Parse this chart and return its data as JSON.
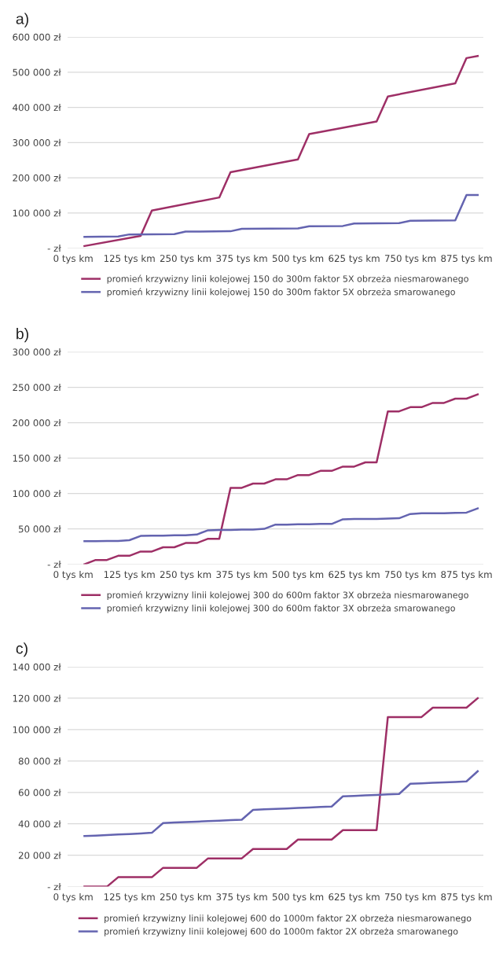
{
  "chart_data": [
    {
      "type": "line",
      "title": "a)",
      "grid": "y",
      "legend": "bottom",
      "xlim": [
        -12.5,
        912.5
      ],
      "ylim": [
        0,
        600000
      ],
      "xticks": [
        {
          "value": 0,
          "label": "0 tys km"
        },
        {
          "value": 125,
          "label": "125 tys km"
        },
        {
          "value": 250,
          "label": "250 tys km"
        },
        {
          "value": 375,
          "label": "375 tys km"
        },
        {
          "value": 500,
          "label": "500 tys km"
        },
        {
          "value": 625,
          "label": "625 tys km"
        },
        {
          "value": 750,
          "label": "750 tys km"
        },
        {
          "value": 875,
          "label": "875 tys km"
        }
      ],
      "yticks": [
        {
          "value": 0,
          "label": "- zł"
        },
        {
          "value": 100000,
          "label": "100 000 zł"
        },
        {
          "value": 200000,
          "label": "200 000 zł"
        },
        {
          "value": 300000,
          "label": "300 000 zł"
        },
        {
          "value": 400000,
          "label": "400 000 zł"
        },
        {
          "value": 500000,
          "label": "500 000 zł"
        },
        {
          "value": 600000,
          "label": "600 000 zł"
        }
      ],
      "series": [
        {
          "name": "promień krzywizny linii kolejowej 150 do 300m faktor 5X obrzeża niesmarowanego",
          "color": "#9e2f66",
          "x": [
            25,
            150,
            175,
            325,
            350,
            500,
            525,
            675,
            700,
            850,
            875,
            900
          ],
          "values": [
            6000,
            35000,
            107000,
            144000,
            216000,
            252000,
            324000,
            360000,
            431000,
            468000,
            540000,
            546000
          ]
        },
        {
          "name": "promień krzywizny linii kolejowej 150 do 300m faktor 5X obrzeża smarowanego",
          "color": "#6464b0",
          "x": [
            25,
            100,
            125,
            225,
            250,
            350,
            375,
            500,
            525,
            600,
            625,
            725,
            750,
            850,
            875,
            900
          ],
          "values": [
            32000,
            33000,
            39000,
            40000,
            47000,
            48000,
            55000,
            56000,
            62000,
            63000,
            70000,
            71000,
            78000,
            79000,
            151000,
            151000
          ]
        }
      ]
    },
    {
      "type": "line",
      "title": "b)",
      "grid": "y",
      "legend": "bottom",
      "xlim": [
        -12.5,
        912.5
      ],
      "ylim": [
        0,
        300000
      ],
      "xticks": [
        {
          "value": 0,
          "label": "0 tys km"
        },
        {
          "value": 125,
          "label": "125 tys km"
        },
        {
          "value": 250,
          "label": "250 tys km"
        },
        {
          "value": 375,
          "label": "375 tys km"
        },
        {
          "value": 500,
          "label": "500 tys km"
        },
        {
          "value": 625,
          "label": "625 tys km"
        },
        {
          "value": 750,
          "label": "750 tys km"
        },
        {
          "value": 875,
          "label": "875 tys km"
        }
      ],
      "yticks": [
        {
          "value": 0,
          "label": "- zł"
        },
        {
          "value": 50000,
          "label": "50 000 zł"
        },
        {
          "value": 100000,
          "label": "100 000 zł"
        },
        {
          "value": 150000,
          "label": "150 000 zł"
        },
        {
          "value": 200000,
          "label": "200 000 zł"
        },
        {
          "value": 250000,
          "label": "250 000 zł"
        },
        {
          "value": 300000,
          "label": "300 000 zł"
        }
      ],
      "x": [
        25,
        50,
        75,
        100,
        125,
        150,
        175,
        200,
        225,
        250,
        275,
        300,
        325,
        350,
        375,
        400,
        425,
        450,
        475,
        500,
        525,
        550,
        575,
        600,
        625,
        650,
        675,
        700,
        725,
        750,
        775,
        800,
        825,
        850,
        875,
        900
      ],
      "series": [
        {
          "name": "promień krzywizny linii kolejowej 300 do 600m faktor 3X obrzeża niesmarowanego",
          "color": "#9e2f66",
          "values": [
            0,
            6000,
            6000,
            12000,
            12000,
            18000,
            18000,
            24000,
            24000,
            30000,
            30000,
            36000,
            36000,
            108000,
            108000,
            114000,
            114000,
            120000,
            120000,
            126000,
            126000,
            132000,
            132000,
            138000,
            138000,
            144000,
            144000,
            216000,
            216000,
            222000,
            222000,
            228000,
            228000,
            234000,
            234000,
            240000
          ]
        },
        {
          "name": "promień krzywizny linii kolejowej 300 do 600m faktor 3X obrzeża smarowanego",
          "color": "#6464b0",
          "values": [
            32500,
            32500,
            33000,
            33000,
            34000,
            40000,
            40500,
            40500,
            41000,
            41000,
            42000,
            48000,
            48500,
            48500,
            49000,
            49000,
            50000,
            56000,
            56000,
            56500,
            56500,
            57000,
            57000,
            63500,
            64000,
            64000,
            64000,
            64500,
            65000,
            71000,
            72000,
            72000,
            72000,
            72500,
            73000,
            79000
          ]
        }
      ]
    },
    {
      "type": "line",
      "title": "c)",
      "grid": "y",
      "legend": "bottom",
      "xlim": [
        -12.5,
        912.5
      ],
      "ylim": [
        0,
        140000
      ],
      "xticks": [
        {
          "value": 0,
          "label": "0 tys km"
        },
        {
          "value": 125,
          "label": "125 tys km"
        },
        {
          "value": 250,
          "label": "250 tys km"
        },
        {
          "value": 375,
          "label": "375 tys km"
        },
        {
          "value": 500,
          "label": "500 tys km"
        },
        {
          "value": 625,
          "label": "625 tys km"
        },
        {
          "value": 750,
          "label": "750 tys km"
        },
        {
          "value": 875,
          "label": "875 tys km"
        }
      ],
      "yticks": [
        {
          "value": 0,
          "label": "- zł"
        },
        {
          "value": 20000,
          "label": "20 000 zł"
        },
        {
          "value": 40000,
          "label": "40 000 zł"
        },
        {
          "value": 60000,
          "label": "60 000 zł"
        },
        {
          "value": 80000,
          "label": "80 000 zł"
        },
        {
          "value": 100000,
          "label": "100 000 zł"
        },
        {
          "value": 120000,
          "label": "120 000 zł"
        },
        {
          "value": 140000,
          "label": "140 000 zł"
        }
      ],
      "x": [
        25,
        50,
        75,
        100,
        125,
        150,
        175,
        200,
        225,
        250,
        275,
        300,
        325,
        350,
        375,
        400,
        425,
        450,
        475,
        500,
        525,
        550,
        575,
        600,
        625,
        650,
        675,
        700,
        725,
        750,
        775,
        800,
        825,
        850,
        875,
        900
      ],
      "series": [
        {
          "name": "promień krzywizny linii kolejowej 600 do 1000m faktor 2X obrzeża niesmarowanego",
          "color": "#9e2f66",
          "values": [
            0,
            0,
            0,
            6000,
            6000,
            6000,
            6000,
            12000,
            12000,
            12000,
            12000,
            18000,
            18000,
            18000,
            18000,
            24000,
            24000,
            24000,
            24000,
            30000,
            30000,
            30000,
            30000,
            36000,
            36000,
            36000,
            36000,
            108000,
            108000,
            108000,
            108000,
            114000,
            114000,
            114000,
            114000,
            120000
          ]
        },
        {
          "name": "promień krzywizny linii kolejowej 600 do 1000m faktor 2X obrzeża smarowanego",
          "color": "#6464b0",
          "values": [
            32200,
            32500,
            32800,
            33200,
            33500,
            33900,
            34300,
            40500,
            40800,
            41100,
            41400,
            41700,
            42000,
            42300,
            42600,
            48900,
            49200,
            49500,
            49800,
            50100,
            50400,
            50700,
            51000,
            57500,
            57800,
            58100,
            58400,
            58700,
            59000,
            65500,
            65800,
            66100,
            66400,
            66700,
            67000,
            73500
          ]
        }
      ]
    }
  ]
}
